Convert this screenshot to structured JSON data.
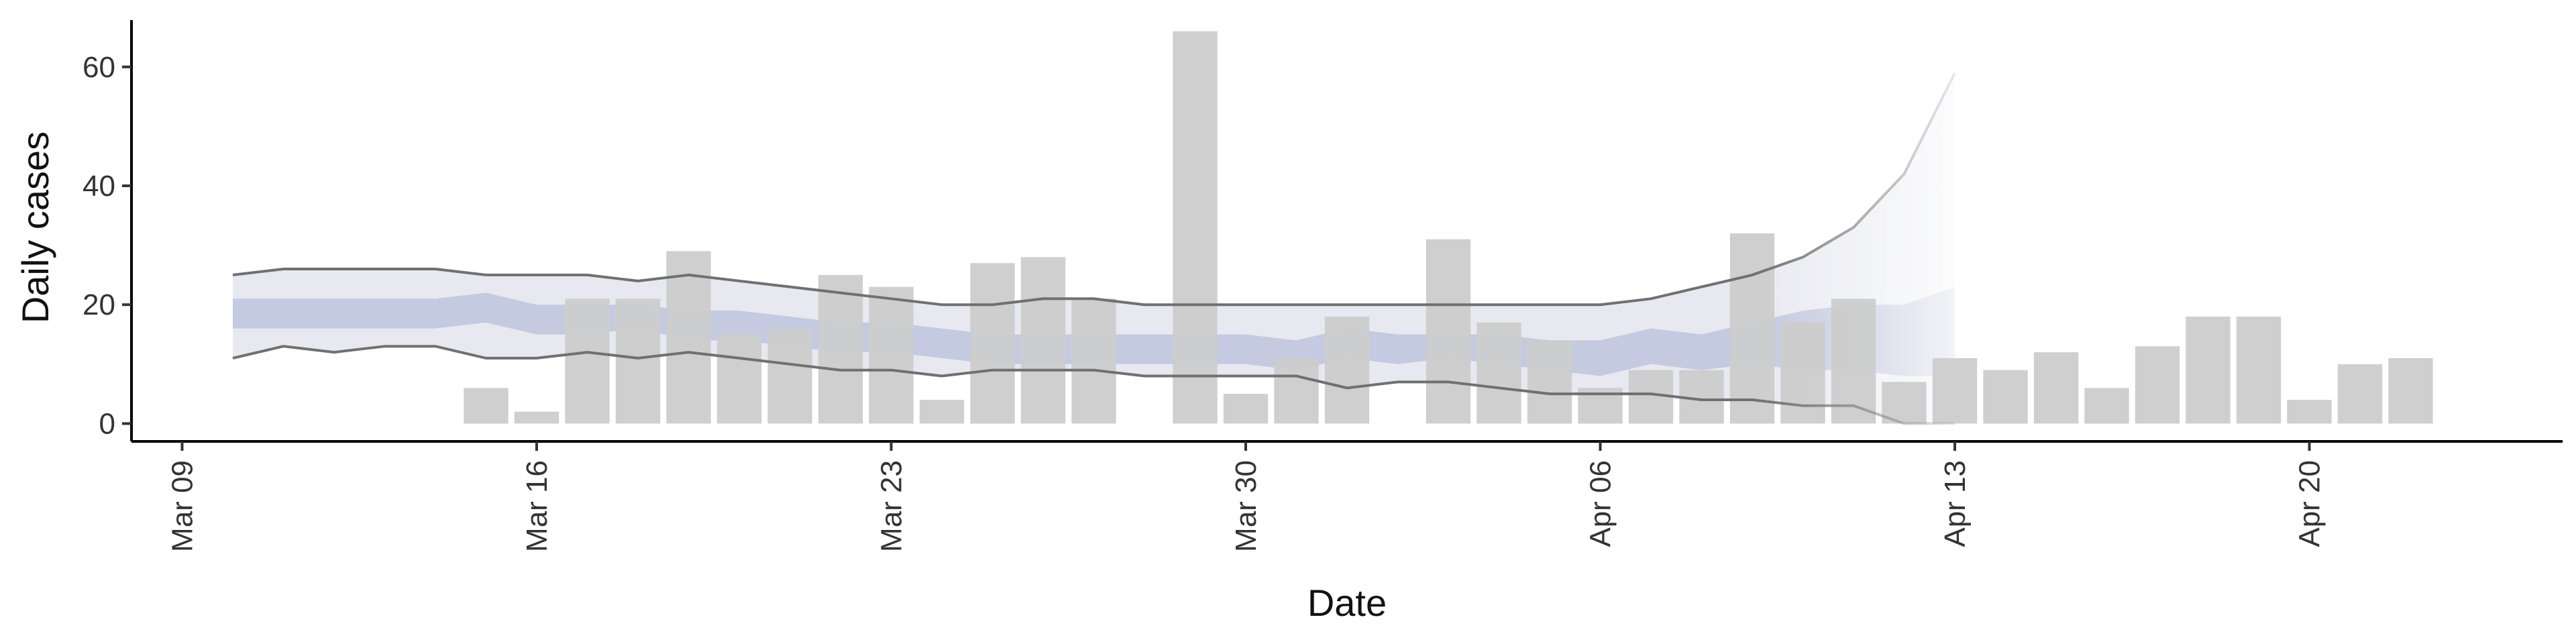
{
  "chart_data": {
    "type": "bar",
    "xlabel": "Date",
    "ylabel": "Daily cases",
    "x_tick_labels": [
      "Mar 09",
      "Mar 16",
      "Mar 23",
      "Mar 30",
      "Apr 06",
      "Apr 13",
      "Apr 20"
    ],
    "x_tick_dates": [
      "2020-03-09",
      "2020-03-16",
      "2020-03-23",
      "2020-03-30",
      "2020-04-06",
      "2020-04-13",
      "2020-04-20"
    ],
    "y_ticks": [
      0,
      20,
      40,
      60
    ],
    "ylim": [
      -3,
      69
    ],
    "xlim": [
      "2020-03-08",
      "2020-04-25"
    ],
    "grid": false,
    "bars": {
      "name": "Reported cases",
      "color": "#cccccc",
      "dates": [
        "2020-03-15",
        "2020-03-16",
        "2020-03-17",
        "2020-03-18",
        "2020-03-19",
        "2020-03-20",
        "2020-03-21",
        "2020-03-22",
        "2020-03-23",
        "2020-03-24",
        "2020-03-25",
        "2020-03-26",
        "2020-03-27",
        "2020-03-28",
        "2020-03-29",
        "2020-03-30",
        "2020-03-31",
        "2020-04-01",
        "2020-04-02",
        "2020-04-03",
        "2020-04-04",
        "2020-04-05",
        "2020-04-06",
        "2020-04-07",
        "2020-04-08",
        "2020-04-09",
        "2020-04-10",
        "2020-04-11",
        "2020-04-12",
        "2020-04-13",
        "2020-04-14",
        "2020-04-15",
        "2020-04-16",
        "2020-04-17",
        "2020-04-18",
        "2020-04-19",
        "2020-04-20",
        "2020-04-21",
        "2020-04-22"
      ],
      "values": [
        6,
        2,
        21,
        21,
        29,
        15,
        16,
        25,
        23,
        4,
        27,
        28,
        21,
        0,
        66,
        5,
        11,
        18,
        0,
        31,
        17,
        14,
        6,
        9,
        9,
        32,
        17,
        21,
        7,
        11,
        9,
        12,
        6,
        13,
        18,
        18,
        4,
        10,
        11
      ]
    },
    "band": {
      "dates": [
        "2020-03-10",
        "2020-03-11",
        "2020-03-12",
        "2020-03-13",
        "2020-03-14",
        "2020-03-15",
        "2020-03-16",
        "2020-03-17",
        "2020-03-18",
        "2020-03-19",
        "2020-03-20",
        "2020-03-21",
        "2020-03-22",
        "2020-03-23",
        "2020-03-24",
        "2020-03-25",
        "2020-03-26",
        "2020-03-27",
        "2020-03-28",
        "2020-03-29",
        "2020-03-30",
        "2020-03-31",
        "2020-04-01",
        "2020-04-02",
        "2020-04-03",
        "2020-04-04",
        "2020-04-05",
        "2020-04-06",
        "2020-04-07",
        "2020-04-08",
        "2020-04-09",
        "2020-04-10",
        "2020-04-11",
        "2020-04-12",
        "2020-04-13"
      ],
      "upper_90": [
        25,
        26,
        26,
        26,
        26,
        25,
        25,
        25,
        24,
        25,
        24,
        23,
        22,
        21,
        20,
        20,
        21,
        21,
        20,
        20,
        20,
        20,
        20,
        20,
        20,
        20,
        20,
        20,
        21,
        23,
        25,
        28,
        33,
        42,
        59
      ],
      "lower_90": [
        11,
        13,
        12,
        13,
        13,
        11,
        11,
        12,
        11,
        12,
        11,
        10,
        9,
        9,
        8,
        9,
        9,
        9,
        8,
        8,
        8,
        8,
        6,
        7,
        7,
        6,
        5,
        5,
        5,
        4,
        4,
        3,
        3,
        0,
        0
      ],
      "upper_50": [
        21,
        21,
        21,
        21,
        21,
        22,
        20,
        20,
        20,
        19,
        19,
        18,
        17,
        17,
        16,
        15,
        15,
        15,
        15,
        15,
        15,
        14,
        16,
        15,
        15,
        15,
        14,
        14,
        16,
        15,
        17,
        19,
        20,
        20,
        23
      ],
      "lower_50": [
        16,
        16,
        16,
        16,
        16,
        17,
        15,
        15,
        16,
        14,
        14,
        13,
        12,
        12,
        11,
        10,
        10,
        10,
        10,
        10,
        10,
        9,
        11,
        10,
        11,
        10,
        9,
        8,
        10,
        9,
        10,
        9,
        9,
        8,
        8
      ],
      "band_90_color": "#e8e9f0",
      "band_50_color": "#c4cadf",
      "line_color": "#707070",
      "nowcast_start": "2020-04-09"
    }
  }
}
